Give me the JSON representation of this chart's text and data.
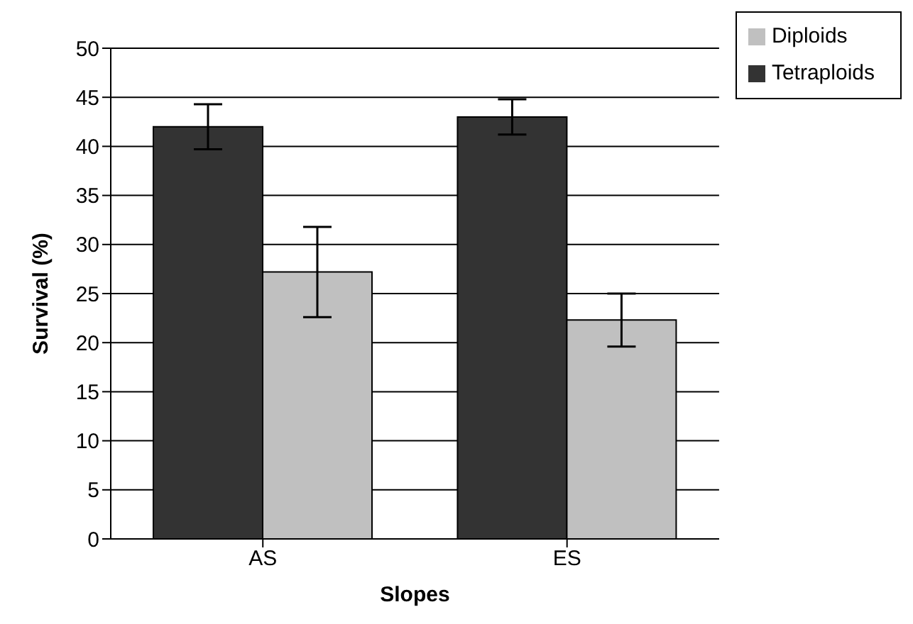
{
  "chart_data": {
    "type": "bar",
    "xlabel": "Slopes",
    "ylabel": "Survival (%)",
    "categories": [
      "AS",
      "ES"
    ],
    "series": [
      {
        "name": "Tetraploids",
        "color": "#333333",
        "values": [
          42.0,
          43.0
        ],
        "errors": [
          2.3,
          1.8
        ]
      },
      {
        "name": "Diploids",
        "color": "#c0c0c0",
        "values": [
          27.2,
          22.3
        ],
        "errors": [
          4.6,
          2.7
        ]
      }
    ],
    "ylim": [
      0,
      50
    ],
    "yticks": [
      0,
      5,
      10,
      15,
      20,
      25,
      30,
      35,
      40,
      45,
      50
    ],
    "grid": "y",
    "legend": "top right"
  }
}
